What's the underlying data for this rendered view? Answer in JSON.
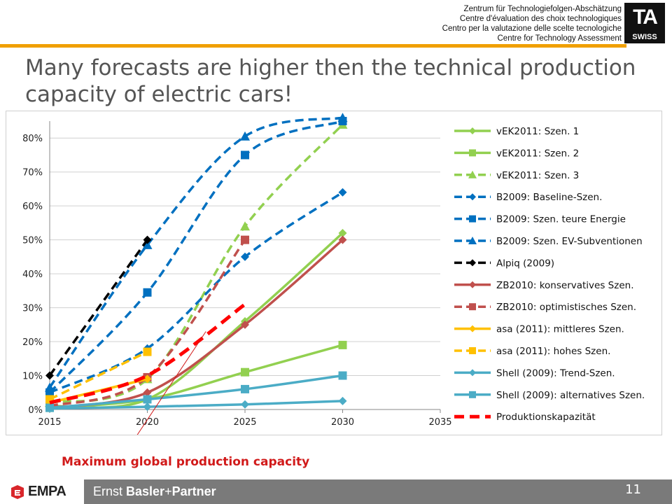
{
  "header": {
    "lines": [
      "Zentrum für Technologiefolgen-Abschätzung",
      "Centre d'évaluation des choix technologiques",
      "Centro per la valutazione delle scelte tecnologiche",
      "Centre for Technology Assessment"
    ],
    "logo_text": "TA",
    "logo_subtext": "SWISS",
    "accent_color": "#f0a000"
  },
  "title": "Many forecasts are higher then the technical production capacity of electric cars!",
  "chart_data": {
    "type": "line",
    "title": "",
    "xlabel": "",
    "ylabel": "",
    "xlim": [
      2015,
      2035
    ],
    "ylim": [
      0,
      0.85
    ],
    "x_ticks": [
      2015,
      2020,
      2025,
      2030,
      2035
    ],
    "x_tick_labels": [
      "2015",
      "2020",
      "2025",
      "2030",
      "2035"
    ],
    "y_ticks": [
      0,
      0.1,
      0.2,
      0.3,
      0.4,
      0.5,
      0.6,
      0.7,
      0.8
    ],
    "y_tick_labels": [
      "0%",
      "10%",
      "20%",
      "30%",
      "40%",
      "50%",
      "60%",
      "70%",
      "80%"
    ],
    "grid": "horizontal",
    "legend_position": "right",
    "series": [
      {
        "name": "vEK2011: Szen. 1",
        "color": "#92d050",
        "dash": "solid",
        "marker": "diamond",
        "x": [
          2015,
          2020,
          2025,
          2030
        ],
        "y": [
          0.01,
          0.03,
          0.26,
          0.52
        ]
      },
      {
        "name": "vEK2011: Szen. 2",
        "color": "#92d050",
        "dash": "solid",
        "marker": "square",
        "x": [
          2015,
          2020,
          2025,
          2030
        ],
        "y": [
          0.005,
          0.03,
          0.11,
          0.19
        ]
      },
      {
        "name": "vEK2011: Szen. 3",
        "color": "#92d050",
        "dash": "dashed",
        "marker": "triangle",
        "x": [
          2015,
          2020,
          2025,
          2030
        ],
        "y": [
          0.02,
          0.09,
          0.54,
          0.84
        ]
      },
      {
        "name": "B2009: Baseline-Szen.",
        "color": "#0070c0",
        "dash": "dashed",
        "marker": "diamond",
        "x": [
          2015,
          2020,
          2025,
          2030
        ],
        "y": [
          0.05,
          0.18,
          0.45,
          0.64
        ]
      },
      {
        "name": "B2009: Szen. teure Energie",
        "color": "#0070c0",
        "dash": "dashed",
        "marker": "square",
        "x": [
          2015,
          2020,
          2025,
          2030
        ],
        "y": [
          0.05,
          0.345,
          0.75,
          0.85
        ]
      },
      {
        "name": "B2009: Szen. EV-Subventionen",
        "color": "#0070c0",
        "dash": "dashed",
        "marker": "triangle",
        "x": [
          2015,
          2020,
          2025,
          2030
        ],
        "y": [
          0.065,
          0.485,
          0.805,
          0.86
        ]
      },
      {
        "name": "Alpiq (2009)",
        "color": "#000000",
        "dash": "dashed",
        "marker": "diamond",
        "x": [
          2015,
          2020
        ],
        "y": [
          0.1,
          0.5
        ]
      },
      {
        "name": "ZB2010: konservatives Szen.",
        "color": "#c0504d",
        "dash": "solid",
        "marker": "diamond",
        "x": [
          2015,
          2020,
          2025,
          2030
        ],
        "y": [
          0.005,
          0.05,
          0.25,
          0.5
        ]
      },
      {
        "name": "ZB2010: optimistisches Szen.",
        "color": "#c0504d",
        "dash": "dashed",
        "marker": "square",
        "x": [
          2015,
          2020,
          2025
        ],
        "y": [
          0.01,
          0.095,
          0.5
        ]
      },
      {
        "name": "asa (2011): mittleres Szen.",
        "color": "#ffc000",
        "dash": "solid",
        "marker": "diamond",
        "x": [
          2015,
          2020
        ],
        "y": [
          0.02,
          0.09
        ]
      },
      {
        "name": "asa (2011): hohes Szen.",
        "color": "#ffc000",
        "dash": "dashed",
        "marker": "square",
        "x": [
          2015,
          2020
        ],
        "y": [
          0.03,
          0.17
        ]
      },
      {
        "name": "Shell (2009): Trend-Szen.",
        "color": "#4bacc6",
        "dash": "solid",
        "marker": "diamond",
        "x": [
          2015,
          2020,
          2025,
          2030
        ],
        "y": [
          0.003,
          0.008,
          0.015,
          0.025
        ]
      },
      {
        "name": "Shell (2009): alternatives Szen.",
        "color": "#4bacc6",
        "dash": "solid",
        "marker": "square",
        "x": [
          2015,
          2020,
          2025,
          2030
        ],
        "y": [
          0.005,
          0.03,
          0.06,
          0.1
        ]
      },
      {
        "name": "Produktionskapazität",
        "color": "#ff0000",
        "dash": "bigdash",
        "marker": "none",
        "x": [
          2015,
          2020,
          2025
        ],
        "y": [
          0.02,
          0.1,
          0.31
        ]
      }
    ],
    "annotation": {
      "text": "Maximum global production capacity",
      "color": "#d11a1a",
      "points_to": {
        "x": 2023,
        "y": 0.23
      }
    }
  },
  "footer": {
    "left_logo": "EMPA",
    "partner_regular": "Ernst ",
    "partner_bold": "Basler",
    "partner_plus": "+",
    "partner_bold2": "Partner",
    "page_number": "11"
  }
}
